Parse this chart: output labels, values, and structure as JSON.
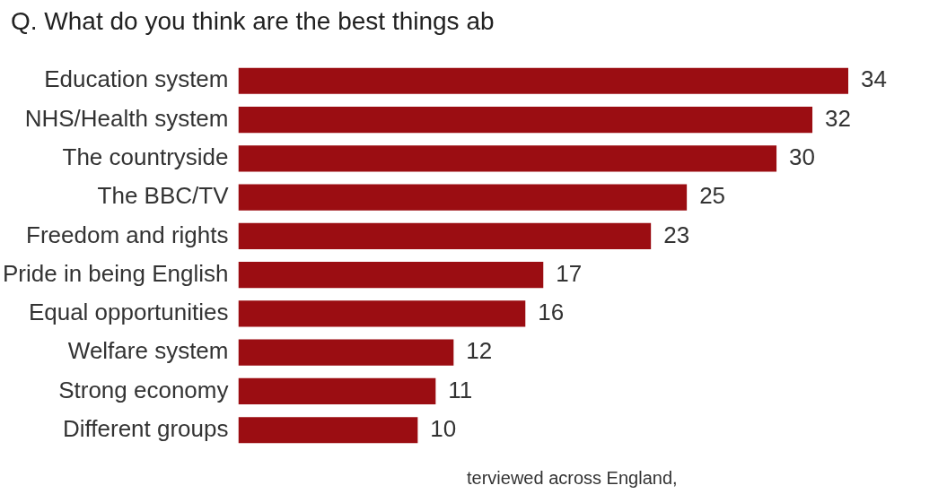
{
  "chart_data": {
    "type": "bar",
    "orientation": "horizontal",
    "title": "Q. What do you think are the best things ab",
    "categories": [
      "Education system",
      "NHS/Health system",
      "The countryside",
      "The BBC/TV",
      "Freedom and rights",
      "Pride in being English",
      "Equal opportunities",
      "Welfare system",
      "Strong economy",
      "Different groups"
    ],
    "values": [
      34,
      32,
      30,
      25,
      23,
      17,
      16,
      12,
      11,
      10
    ],
    "color": "#9b0d12",
    "data_labels": true,
    "grid": false,
    "legend": false,
    "annotations": [
      "terviewed across England,"
    ]
  }
}
